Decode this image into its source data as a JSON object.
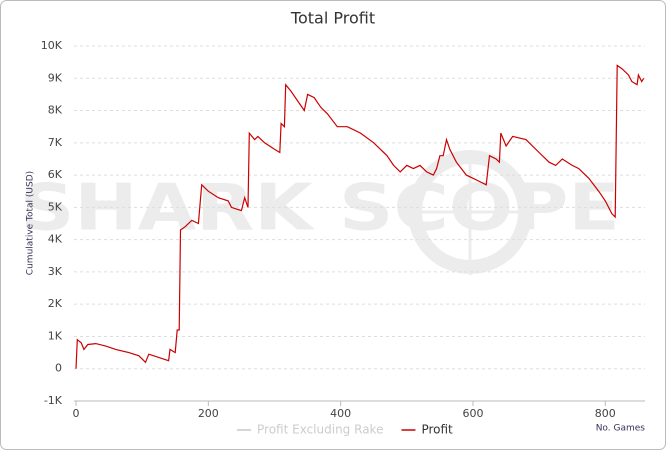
{
  "chart_data": {
    "type": "line",
    "title": "Total Profit",
    "y_label": "Cumulative Total (USD)",
    "x_label": "No. Games",
    "watermark": "SHARK SCOPE",
    "x": [
      0,
      2,
      8,
      12,
      18,
      30,
      45,
      60,
      80,
      95,
      105,
      110,
      125,
      140,
      142,
      150,
      153,
      156,
      158,
      165,
      175,
      185,
      190,
      200,
      215,
      230,
      235,
      250,
      255,
      260,
      262,
      270,
      275,
      285,
      300,
      308,
      310,
      315,
      317,
      325,
      335,
      345,
      350,
      360,
      370,
      380,
      395,
      410,
      430,
      450,
      470,
      480,
      490,
      500,
      510,
      520,
      530,
      540,
      545,
      550,
      555,
      560,
      565,
      575,
      590,
      610,
      620,
      625,
      635,
      640,
      642,
      650,
      660,
      680,
      700,
      715,
      725,
      735,
      750,
      760,
      775,
      790,
      800,
      810,
      815,
      818,
      825,
      835,
      840,
      848,
      850,
      855,
      858
    ],
    "series": [
      {
        "name": "Profit Excluding Rake",
        "color": "#c8c8c8"
      },
      {
        "name": "Profit",
        "color": "#cc0000",
        "values": [
          0,
          900,
          800,
          600,
          750,
          780,
          700,
          600,
          500,
          400,
          200,
          450,
          350,
          250,
          600,
          500,
          1200,
          1200,
          4300,
          4400,
          4600,
          4500,
          5700,
          5500,
          5300,
          5200,
          5000,
          4900,
          5300,
          5000,
          7300,
          7100,
          7200,
          7000,
          6800,
          6700,
          7600,
          7500,
          8800,
          8600,
          8300,
          8000,
          8500,
          8400,
          8100,
          7900,
          7500,
          7500,
          7300,
          7000,
          6600,
          6300,
          6100,
          6300,
          6200,
          6300,
          6100,
          6000,
          6200,
          6600,
          6600,
          7100,
          6800,
          6400,
          6000,
          5800,
          5700,
          6600,
          6500,
          6400,
          7300,
          6900,
          7200,
          7100,
          6700,
          6400,
          6300,
          6500,
          6300,
          6200,
          5900,
          5500,
          5200,
          4800,
          4700,
          9400,
          9300,
          9100,
          8900,
          8800,
          9100,
          8900,
          9000
        ]
      }
    ],
    "xlim": [
      0,
      860
    ],
    "xticks": [
      0,
      200,
      400,
      600,
      800
    ],
    "ylim": [
      -1000,
      10000
    ],
    "yticks": [
      {
        "value": -1000,
        "label": "-1K"
      },
      0,
      {
        "value": 1000,
        "label": "1K"
      },
      {
        "value": 2000,
        "label": "2K"
      },
      {
        "value": 3000,
        "label": "3K"
      },
      {
        "value": 4000,
        "label": "4K"
      },
      {
        "value": 5000,
        "label": "5K"
      },
      {
        "value": 6000,
        "label": "6K"
      },
      {
        "value": 7000,
        "label": "7K"
      },
      {
        "value": 8000,
        "label": "8K"
      },
      {
        "value": 9000,
        "label": "9K"
      },
      {
        "value": 10000,
        "label": "10K"
      }
    ],
    "grid": true
  }
}
